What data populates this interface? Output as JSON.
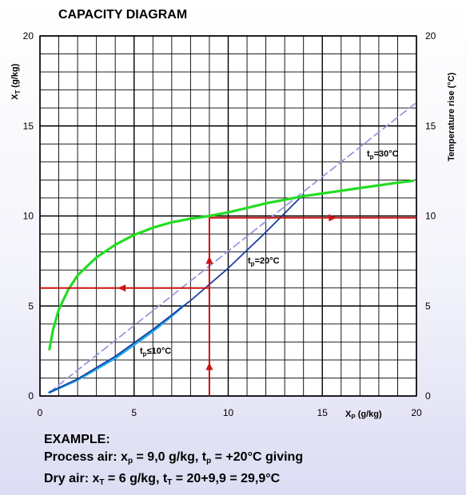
{
  "chart_data": {
    "type": "line",
    "title": "CAPACITY DIAGRAM",
    "xlabel_main": "X",
    "xlabel_sub": "P",
    "xlabel_unit": " (g/kg)",
    "ylabel_main": "X",
    "ylabel_sub": "T",
    "ylabel_unit": " (g/kg)",
    "y2label": "Temperature rise (°C)",
    "xlim": [
      0,
      20
    ],
    "ylim": [
      0,
      20
    ],
    "y2lim": [
      0,
      20
    ],
    "x_ticks": [
      "0",
      "5",
      "10",
      "15",
      "20"
    ],
    "y_ticks": [
      "0",
      "5",
      "10",
      "15",
      "20"
    ],
    "y2_ticks": [
      "0",
      "5",
      "10",
      "15",
      "20"
    ],
    "grid": true,
    "series": [
      {
        "role": "temperature-rise",
        "color": "#22dd22",
        "x": [
          0.5,
          0.7,
          1.0,
          1.5,
          2.0,
          3.0,
          4.0,
          5.0,
          6.0,
          7.0,
          8.0,
          9.0,
          10.0,
          11.0,
          12.0,
          13.0,
          14.0,
          15.0,
          16.0,
          17.0,
          18.0,
          19.0,
          19.8
        ],
        "y": [
          2.6,
          3.7,
          4.8,
          5.9,
          6.7,
          7.7,
          8.4,
          8.95,
          9.35,
          9.65,
          9.85,
          10.0,
          10.2,
          10.45,
          10.7,
          10.9,
          11.1,
          11.25,
          11.4,
          11.55,
          11.7,
          11.85,
          11.95
        ]
      },
      {
        "role": "tp-30",
        "label_main": "t",
        "label_sub": "p",
        "label_rest": "=30°C",
        "color": "#9999dd",
        "dashed": true,
        "x": [
          0.5,
          20.0
        ],
        "y": [
          0.2,
          16.3
        ]
      },
      {
        "role": "tp-20",
        "label_main": "t",
        "label_sub": "p",
        "label_rest": "=20°C",
        "color": "#1a3f9e",
        "x": [
          0.5,
          2.0,
          4.0,
          6.0,
          8.0,
          10.0,
          12.0,
          14.0
        ],
        "y": [
          0.2,
          0.95,
          2.2,
          3.7,
          5.3,
          7.1,
          9.1,
          11.2
        ]
      },
      {
        "role": "tp-10",
        "label_main": "t",
        "label_sub": "p",
        "label_rest": "≤10°C",
        "color": "#22aaee",
        "x": [
          0.5,
          2.0,
          3.0,
          4.0,
          5.0,
          6.0,
          7.0,
          7.6
        ],
        "y": [
          0.2,
          0.9,
          1.5,
          2.1,
          2.85,
          3.6,
          4.45,
          5.0
        ]
      }
    ],
    "example_path": {
      "color": "#cc1111",
      "x_process": 9.0,
      "y_dry": 6.0,
      "y_temp_rise": 9.9
    }
  },
  "example": {
    "heading": "EXAMPLE:",
    "line1": "Process air: x",
    "line1_sub": "p",
    "line1_rest": " = 9,0 g/kg, t",
    "line1_sub2": "p",
    "line1_rest2": " = +20°C giving",
    "line2": "Dry air: x",
    "line2_sub": "T",
    "line2_rest": " = 6 g/kg, t",
    "line2_sub2": "T",
    "line2_rest2": " = 20+9,9 = 29,9°C"
  }
}
